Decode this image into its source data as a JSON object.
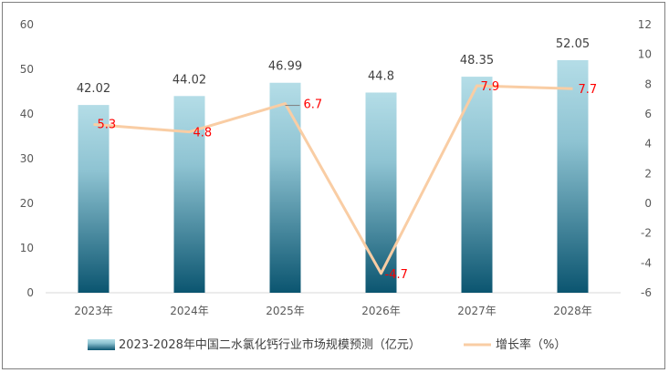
{
  "chart_data": {
    "type": "bar",
    "categories": [
      "2023年",
      "2024年",
      "2025年",
      "2026年",
      "2027年",
      "2028年"
    ],
    "series": [
      {
        "name": "2023-2028年中国二水氯化钙行业市场规模预测（亿元）",
        "type": "bar",
        "axis": "left",
        "values": [
          42.02,
          44.02,
          46.99,
          44.8,
          48.35,
          52.05
        ],
        "labels": [
          "42.02",
          "44.02",
          "46.99",
          "44.8",
          "48.35",
          "52.05"
        ]
      },
      {
        "name": "增长率（%）",
        "type": "line",
        "axis": "right",
        "values": [
          5.3,
          4.8,
          6.7,
          -4.7,
          7.9,
          7.7
        ],
        "labels": [
          "5.3",
          "4.8",
          "6.7",
          "-4.7",
          "7.9",
          "7.7"
        ]
      }
    ],
    "y_left": {
      "min": 0,
      "max": 60,
      "ticks": [
        "0",
        "10",
        "20",
        "30",
        "40",
        "50",
        "60"
      ]
    },
    "y_right": {
      "min": -6,
      "max": 12,
      "ticks": [
        "-6",
        "-4",
        "-2",
        "0",
        "2",
        "4",
        "6",
        "8",
        "10",
        "12"
      ]
    },
    "grid": false,
    "legend_position": "bottom",
    "colors": {
      "bar_top": "#b4dde7",
      "bar_bottom": "#0b5570",
      "line": "#f9cda4",
      "rate_label": "#ff0000",
      "axis": "#d9d9d9"
    }
  }
}
